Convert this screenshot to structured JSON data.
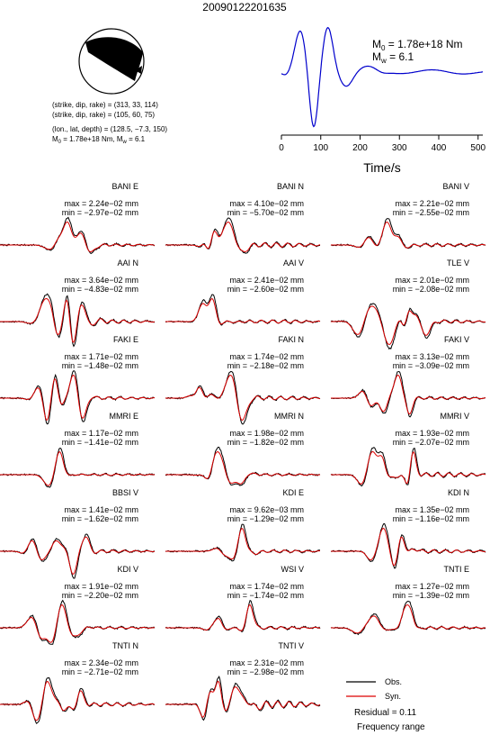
{
  "title": "20090122201635",
  "mechanism": {
    "line1": "(strike, dip, rake) = (313, 33, 114)",
    "line2": "(strike, dip, rake) = (105, 60, 75)",
    "line3": "(lon., lat, depth) = (128.5, −7.3, 150)",
    "line4": "M0 = 1.78e+18 Nm, Mw = 6.1",
    "plane1": {
      "strike": 313,
      "dip": 33,
      "rake": 114
    },
    "plane2": {
      "strike": 105,
      "dip": 60,
      "rake": 75
    }
  },
  "stf": {
    "m0_label": "M0 = 1.78e+18 Nm",
    "mw_label": "Mw = 6.1",
    "xlabel": "Time/s",
    "xticks": [
      "0",
      "100",
      "200",
      "300",
      "400",
      "500"
    ],
    "xlim": [
      0,
      512
    ],
    "color": "#0000cc"
  },
  "panels": [
    {
      "name": "BANI E",
      "max": "max = 2.24e−02 mm",
      "min": "min = −2.97e−02 mm"
    },
    {
      "name": "BANI N",
      "max": "max = 4.10e−02 mm",
      "min": "min = −5.70e−02 mm"
    },
    {
      "name": "BANI V",
      "max": "max = 2.21e−02 mm",
      "min": "min = −2.55e−02 mm"
    },
    {
      "name": "AAI N",
      "max": "max = 3.64e−02 mm",
      "min": "min = −4.83e−02 mm"
    },
    {
      "name": "AAI V",
      "max": "max = 2.41e−02 mm",
      "min": "min = −2.60e−02 mm"
    },
    {
      "name": "TLE V",
      "max": "max = 2.01e−02 mm",
      "min": "min = −2.08e−02 mm"
    },
    {
      "name": "FAKI E",
      "max": "max = 1.71e−02 mm",
      "min": "min = −1.48e−02 mm"
    },
    {
      "name": "FAKI N",
      "max": "max = 1.74e−02 mm",
      "min": "min = −2.18e−02 mm"
    },
    {
      "name": "FAKI V",
      "max": "max = 3.13e−02 mm",
      "min": "min = −3.09e−02 mm"
    },
    {
      "name": "MMRI E",
      "max": "max = 1.17e−02 mm",
      "min": "min = −1.41e−02 mm"
    },
    {
      "name": "MMRI N",
      "max": "max = 1.98e−02 mm",
      "min": "min = −1.82e−02 mm"
    },
    {
      "name": "MMRI V",
      "max": "max = 1.93e−02 mm",
      "min": "min = −2.07e−02 mm"
    },
    {
      "name": "BBSI V",
      "max": "max = 1.41e−02 mm",
      "min": "min = −1.62e−02 mm"
    },
    {
      "name": "KDI E",
      "max": "max = 9.62e−03 mm",
      "min": "min = −1.29e−02 mm"
    },
    {
      "name": "KDI N",
      "max": "max = 1.35e−02 mm",
      "min": "min = −1.16e−02 mm"
    },
    {
      "name": "KDI V",
      "max": "max = 1.91e−02 mm",
      "min": "min = −2.20e−02 mm"
    },
    {
      "name": "WSI V",
      "max": "max = 1.74e−02 mm",
      "min": "min = −1.74e−02 mm"
    },
    {
      "name": "TNTI E",
      "max": "max = 1.27e−02 mm",
      "min": "min = −1.39e−02 mm"
    },
    {
      "name": "TNTI N",
      "max": "max = 2.34e−02 mm",
      "min": "min = −2.71e−02 mm"
    },
    {
      "name": "TNTI V",
      "max": "max = 2.31e−02 mm",
      "min": "min = −2.98e−02 mm"
    }
  ],
  "legend": {
    "obs": "Obs.",
    "syn": "Syn.",
    "obs_color": "#000000",
    "syn_color": "#dd0000",
    "residual": "Residual = 0.11",
    "freq": "Frequency range"
  },
  "chart_data": {
    "type": "line",
    "title": "20090122201635",
    "series": [
      {
        "name": "Obs.",
        "color": "#000000"
      },
      {
        "name": "Syn.",
        "color": "#dd0000"
      }
    ],
    "stf": {
      "xlabel": "Time/s",
      "xlim": [
        0,
        512
      ],
      "xticks": [
        0,
        100,
        200,
        300,
        400,
        500
      ],
      "grid": false
    }
  }
}
